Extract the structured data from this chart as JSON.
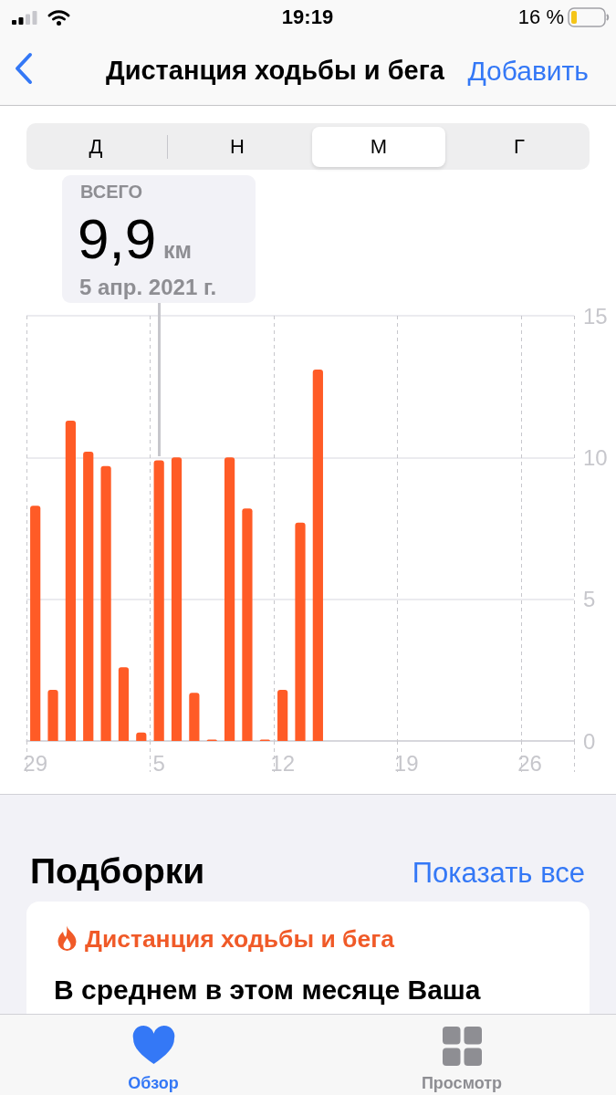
{
  "chart_data": {
    "type": "bar",
    "title": "Дистанция ходьбы и бега",
    "categories": [
      "29",
      null,
      null,
      null,
      null,
      null,
      null,
      "5",
      null,
      null,
      null,
      null,
      null,
      null,
      "12",
      null,
      null,
      null,
      null,
      null,
      null,
      "19",
      null,
      null,
      null,
      null,
      null,
      null,
      "26",
      null,
      null
    ],
    "values": [
      8.3,
      1.8,
      11.3,
      10.2,
      9.7,
      2.6,
      0.3,
      9.9,
      10.0,
      1.7,
      0.05,
      10.0,
      8.2,
      0.05,
      1.8,
      7.7,
      13.1,
      null,
      null,
      null,
      null,
      null,
      null,
      null,
      null,
      null,
      null,
      null,
      null,
      null,
      null
    ],
    "color": "#ff5b26",
    "ylim": [
      0,
      15
    ],
    "yticks": [
      0,
      5,
      10,
      15
    ],
    "grid": true,
    "annotations": [
      "ВСЕГО",
      "9,9",
      "км",
      "5 апр. 2021 г.",
      "19:19",
      "16 %",
      "Добавить",
      "Д",
      "Н",
      "М",
      "Г",
      "Подборки",
      "Показать все",
      "Дистанция ходьбы и бега",
      "В среднем в этом месяце Ваша",
      "Обзор",
      "Просмотр"
    ]
  }
}
